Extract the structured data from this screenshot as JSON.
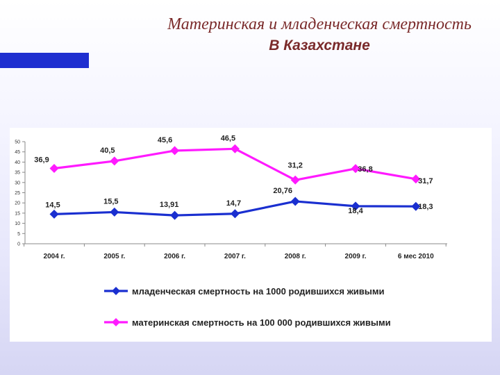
{
  "title": {
    "line1": "Материнская и младенческая смертность",
    "line2": "В Казахстане"
  },
  "colors": {
    "accent_bar": "#1f2fd0",
    "title_text": "#7a2a2a",
    "infant_series": "#1a2fd0",
    "maternal_series": "#ff1aff"
  },
  "chart_data": {
    "type": "line",
    "categories": [
      "2004 г.",
      "2005 г.",
      "2006 г.",
      "2007 г.",
      "2008 г.",
      "2009 г.",
      "6 мес 2010"
    ],
    "ylim": [
      0,
      50
    ],
    "yticks": [
      0,
      5,
      10,
      15,
      20,
      25,
      30,
      35,
      40,
      45,
      50
    ],
    "grid": false,
    "legend_position": "bottom",
    "series": [
      {
        "name": "младенческая смертность на 1000 родившихся живыми",
        "color": "#1a2fd0",
        "values": [
          14.5,
          15.5,
          13.91,
          14.7,
          20.76,
          18.4,
          18.3
        ],
        "labels": [
          "14,5",
          "15,5",
          "13,91",
          "14,7",
          "20,76",
          "18,4",
          "18,3"
        ]
      },
      {
        "name": "материнская смертность на 100 000 родившихся живыми",
        "color": "#ff1aff",
        "values": [
          36.9,
          40.5,
          45.6,
          46.5,
          31.2,
          36.8,
          31.7
        ],
        "labels": [
          "36,9",
          "40,5",
          "45,6",
          "46,5",
          "31,2",
          "36,8",
          "31,7"
        ]
      }
    ]
  }
}
